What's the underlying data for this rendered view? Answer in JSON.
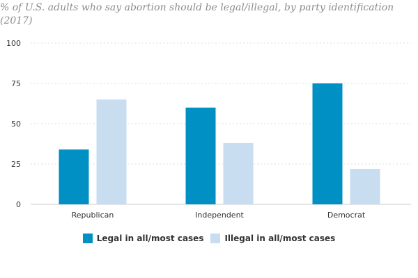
{
  "chart_data": {
    "type": "bar",
    "title": "% of U.S. adults who say abortion should be legal/illegal, by party identification (2017)",
    "categories": [
      "Republican",
      "Independent",
      "Democrat"
    ],
    "series": [
      {
        "name": "Legal in all/most cases",
        "values": [
          34,
          60,
          75
        ],
        "color": "#0090c3"
      },
      {
        "name": "Illegal in all/most cases",
        "values": [
          65,
          38,
          22
        ],
        "color": "#c8ddef"
      }
    ],
    "yticks": [
      0,
      25,
      50,
      75,
      100
    ],
    "ylim": [
      0,
      100
    ],
    "grid": true,
    "legend_position": "bottom"
  }
}
